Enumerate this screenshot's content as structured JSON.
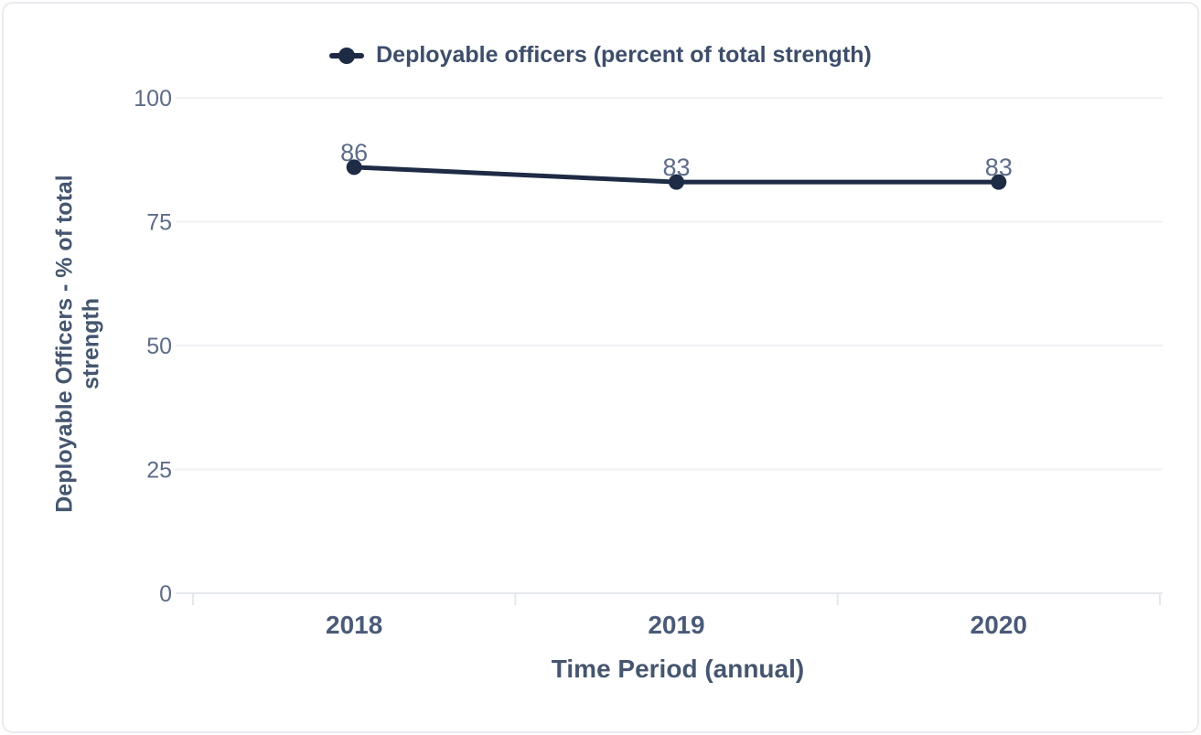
{
  "card": {
    "background": "#ffffff",
    "border_color": "#e9ebef"
  },
  "chart_data": {
    "type": "line",
    "title": "",
    "categories": [
      "2018",
      "2019",
      "2020"
    ],
    "series": [
      {
        "name": "Deployable officers (percent of total strength)",
        "values": [
          86,
          83,
          83
        ]
      }
    ],
    "data_labels": [
      "86",
      "83",
      "83"
    ],
    "xlabel": "Time Period (annual)",
    "ylabel": "Deployable Officers - % of total strength",
    "ylim": [
      0,
      100
    ],
    "yticks": [
      0,
      25,
      50,
      75,
      100
    ],
    "grid": true,
    "legend_position": "top",
    "colors": {
      "series": "#1e2b44",
      "data_label": "#5d6c89",
      "tick_label": "#5d6c89",
      "x_tick_label": "#4a5a78",
      "axis_title": "#46566f",
      "legend_text": "#3d4d6a",
      "gridline": "#f0f1f4",
      "axis_line": "#e5e7eb"
    }
  }
}
